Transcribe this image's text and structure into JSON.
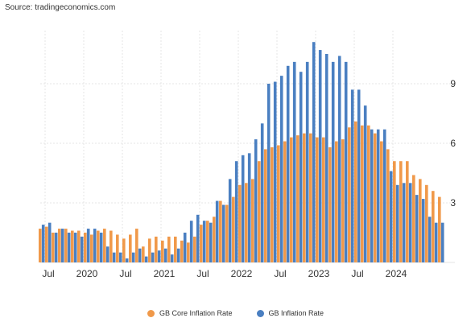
{
  "source_text": "Source: tradingeconomics.com",
  "chart_data": {
    "type": "bar",
    "series": [
      {
        "name": "GB Core Inflation Rate",
        "color": "#f0994a",
        "values": [
          1.7,
          1.8,
          1.5,
          1.7,
          1.7,
          1.6,
          1.6,
          1.5,
          1.4,
          1.6,
          1.7,
          1.6,
          1.4,
          1.2,
          1.4,
          1.7,
          0.8,
          1.2,
          1.3,
          1.1,
          1.3,
          1.3,
          1.1,
          1.0,
          1.3,
          1.9,
          2.1,
          2.3,
          3.1,
          2.9,
          3.3,
          3.9,
          4.0,
          4.2,
          5.1,
          5.7,
          5.8,
          5.9,
          6.1,
          6.3,
          6.4,
          6.5,
          6.5,
          6.3,
          6.3,
          5.8,
          6.1,
          6.2,
          6.8,
          7.1,
          6.9,
          6.9,
          6.5,
          6.1,
          5.7,
          5.1,
          5.1,
          5.1,
          4.4,
          4.2,
          3.9,
          3.6,
          3.3
        ]
      },
      {
        "name": "GB Inflation Rate",
        "color": "#4a7fc1",
        "values": [
          1.9,
          2.0,
          1.5,
          1.7,
          1.5,
          1.5,
          1.3,
          1.7,
          1.7,
          1.5,
          0.8,
          0.5,
          0.5,
          0.2,
          0.5,
          0.7,
          0.3,
          0.5,
          0.6,
          0.7,
          0.4,
          0.7,
          1.5,
          2.1,
          2.4,
          2.1,
          2.0,
          3.1,
          2.9,
          4.2,
          5.1,
          5.4,
          5.5,
          6.2,
          7.0,
          9.0,
          9.1,
          9.4,
          9.9,
          10.1,
          9.6,
          10.1,
          11.1,
          10.7,
          10.5,
          10.1,
          10.4,
          10.1,
          8.7,
          8.7,
          7.9,
          6.7,
          6.7,
          6.7,
          4.6,
          3.9,
          4.0,
          4.0,
          3.4,
          3.2,
          2.3,
          2.0,
          2.0
        ]
      }
    ],
    "x_labels": [
      {
        "index": 1,
        "label": "Jul"
      },
      {
        "index": 7,
        "label": "2020"
      },
      {
        "index": 13,
        "label": "Jul"
      },
      {
        "index": 19,
        "label": "2021"
      },
      {
        "index": 25,
        "label": "Jul"
      },
      {
        "index": 31,
        "label": "2022"
      },
      {
        "index": 37,
        "label": "Jul"
      },
      {
        "index": 43,
        "label": "2023"
      },
      {
        "index": 49,
        "label": "Jul"
      },
      {
        "index": 55,
        "label": "2024"
      }
    ],
    "y_ticks": [
      3,
      6,
      9
    ],
    "ylim": [
      0,
      12
    ],
    "grid": true,
    "legend_position": "bottom-center",
    "title": "",
    "xlabel": "",
    "ylabel": ""
  }
}
